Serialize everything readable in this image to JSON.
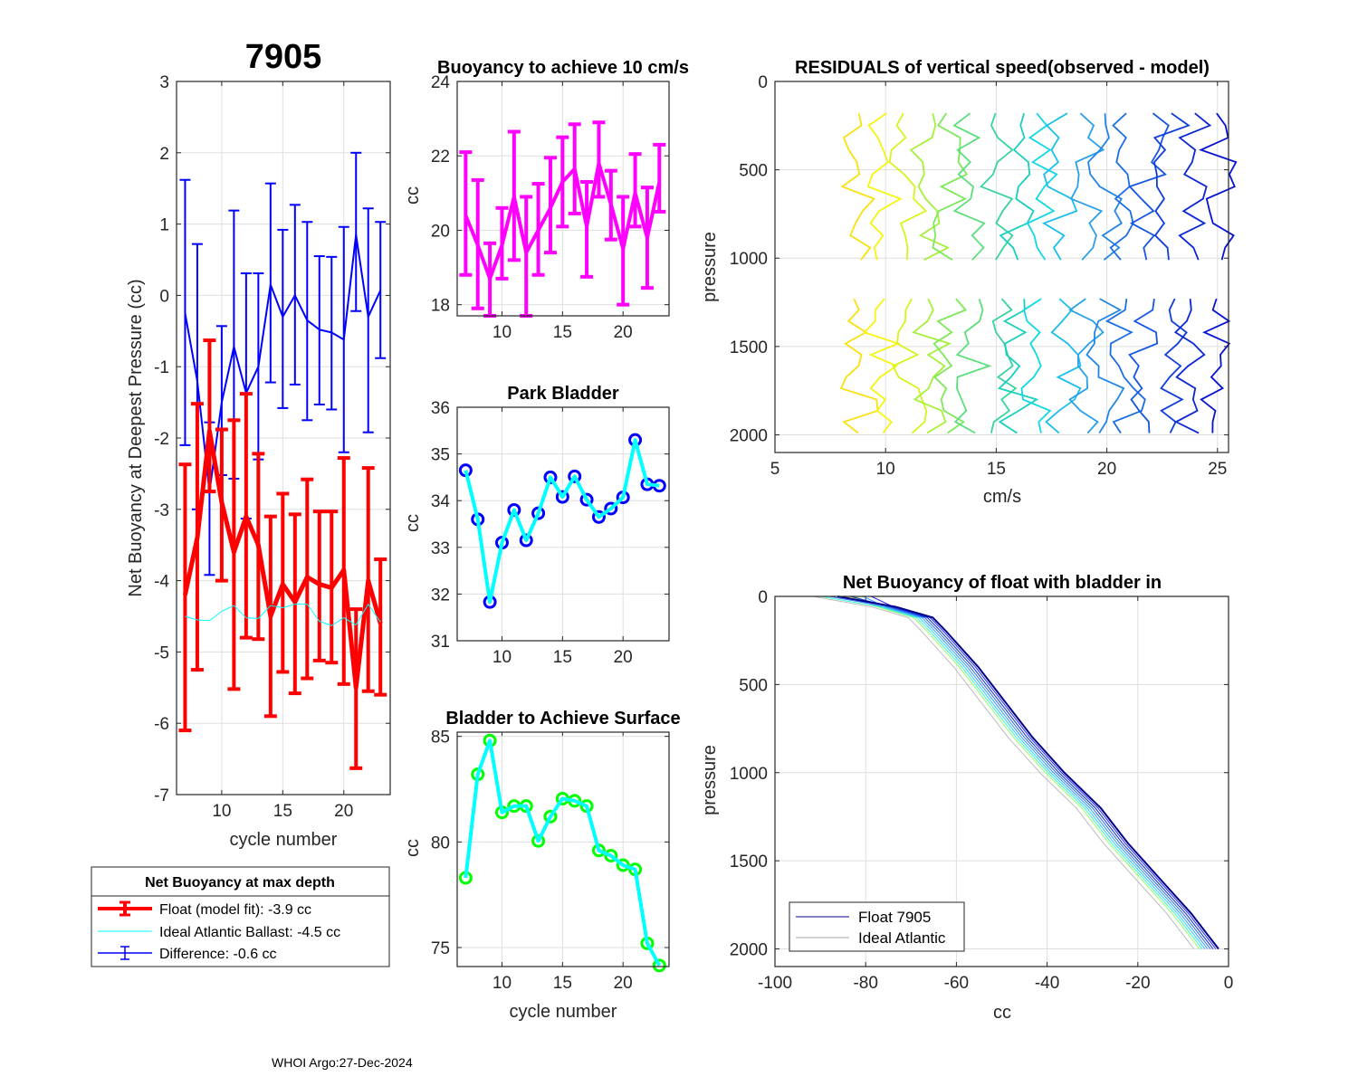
{
  "footer": "WHOI Argo:27-Dec-2024",
  "chart_data": [
    {
      "id": "net-buoyancy",
      "type": "line",
      "title": "7905",
      "xlabel": "cycle number",
      "ylabel": "Net Buoyancy at Deepest Pressure (cc)",
      "xlim": [
        6.3,
        23.8
      ],
      "ylim": [
        -7,
        3
      ],
      "xticks": [
        10,
        15,
        20
      ],
      "yticks": [
        -7,
        -6,
        -5,
        -4,
        -3,
        -2,
        -1,
        0,
        1,
        2,
        3
      ],
      "grid": true,
      "x": [
        7,
        8,
        9,
        10,
        11,
        12,
        13,
        14,
        15,
        16,
        17,
        18,
        19,
        20,
        21,
        22,
        23
      ],
      "series": [
        {
          "name": "Float (model fit)",
          "color": "#ff0000",
          "style": "errorbar-thick",
          "values": [
            -4.2,
            -3.4,
            -1.9,
            -2.9,
            -3.6,
            -3.1,
            -3.5,
            -4.5,
            -4.05,
            -4.3,
            -3.95,
            -4.05,
            -4.1,
            -3.85,
            -5.5,
            -4.0,
            -4.6
          ],
          "lower": [
            -6.1,
            -5.25,
            -2.75,
            -4.0,
            -5.52,
            -4.8,
            -4.82,
            -5.9,
            -5.28,
            -5.58,
            -5.37,
            -5.12,
            -5.15,
            -5.45,
            -6.63,
            -5.55,
            -5.6
          ],
          "upper": [
            -2.37,
            -1.52,
            -0.63,
            -1.88,
            -1.75,
            -1.38,
            -2.22,
            -3.1,
            -2.78,
            -3.07,
            -2.58,
            -3.03,
            -3.03,
            -2.28,
            -4.4,
            -2.42,
            -3.7
          ]
        },
        {
          "name": "Ideal Atlantic Ballast",
          "color": "#00ffff",
          "style": "thin-line",
          "values": [
            -4.5,
            -4.55,
            -4.56,
            -4.43,
            -4.35,
            -4.52,
            -4.53,
            -4.35,
            -4.38,
            -4.33,
            -4.33,
            -4.57,
            -4.63,
            -4.52,
            -4.62,
            -4.33,
            -4.58
          ]
        },
        {
          "name": "Difference",
          "color": "#0000ff",
          "style": "errorbar",
          "values": [
            -0.25,
            -1.2,
            -2.75,
            -1.5,
            -0.72,
            -1.37,
            -1.0,
            0.15,
            -0.3,
            0.0,
            -0.35,
            -0.48,
            -0.52,
            -0.62,
            0.85,
            -0.3,
            0.07
          ],
          "lower": [
            -2.1,
            -3.0,
            -3.92,
            -2.52,
            -2.57,
            -3.13,
            -2.3,
            -1.22,
            -1.58,
            -1.25,
            -1.75,
            -1.53,
            -1.6,
            -2.2,
            -0.22,
            -1.92,
            -0.88
          ],
          "upper": [
            1.62,
            0.72,
            -1.78,
            -0.43,
            1.19,
            0.31,
            0.31,
            1.57,
            0.92,
            1.27,
            1.03,
            0.55,
            0.54,
            0.96,
            2.0,
            1.22,
            1.03
          ]
        }
      ],
      "legend": {
        "title": "Net Buoyancy at max depth",
        "placement": "below",
        "entries": [
          {
            "label": "Float (model fit):  -3.9 cc",
            "color": "#ff0000"
          },
          {
            "label": "Ideal Atlantic Ballast:  -4.5 cc",
            "color": "#00ffff"
          },
          {
            "label": "Difference:  -0.6 cc",
            "color": "#0000ff"
          }
        ]
      }
    },
    {
      "id": "buoyancy-10cms",
      "type": "line",
      "title": "Buoyancy to achieve 10 cm/s",
      "xlabel": "",
      "ylabel": "cc",
      "xlim": [
        6.3,
        23.8
      ],
      "ylim": [
        17.7,
        24
      ],
      "xticks": [
        10,
        15,
        20
      ],
      "yticks": [
        18,
        20,
        22,
        24
      ],
      "grid": true,
      "x": [
        7,
        8,
        9,
        10,
        11,
        12,
        13,
        14,
        15,
        16,
        17,
        18,
        19,
        20,
        21,
        22,
        23
      ],
      "series": [
        {
          "name": "buoyancy",
          "color": "#ff00ff",
          "style": "errorbar-thick",
          "values": [
            20.4,
            19.6,
            18.7,
            19.6,
            20.9,
            19.4,
            20.0,
            20.6,
            21.3,
            21.65,
            20.1,
            21.8,
            20.7,
            19.5,
            21.0,
            19.8,
            21.3
          ],
          "lower": [
            18.8,
            17.9,
            17.7,
            18.7,
            19.2,
            17.7,
            18.8,
            19.4,
            20.1,
            20.45,
            18.75,
            20.9,
            19.75,
            18.0,
            20.1,
            18.45,
            20.5
          ],
          "upper": [
            22.1,
            21.35,
            19.65,
            20.6,
            22.65,
            20.9,
            21.25,
            21.95,
            22.5,
            22.85,
            21.3,
            22.9,
            21.6,
            20.9,
            22.05,
            21.15,
            22.3
          ]
        }
      ]
    },
    {
      "id": "park-bladder",
      "type": "line",
      "title": "Park Bladder",
      "xlabel": "",
      "ylabel": "cc",
      "xlim": [
        6.3,
        23.8
      ],
      "ylim": [
        31,
        36
      ],
      "xticks": [
        10,
        15,
        20
      ],
      "yticks": [
        31,
        32,
        33,
        34,
        35,
        36
      ],
      "grid": true,
      "x": [
        7,
        8,
        9,
        10,
        11,
        12,
        13,
        14,
        15,
        16,
        17,
        18,
        19,
        20,
        21,
        22,
        23
      ],
      "series": [
        {
          "name": "park bladder",
          "color": "#00ffff",
          "marker_color": "#0000ff",
          "values": [
            34.65,
            33.6,
            31.83,
            33.1,
            33.8,
            33.15,
            33.73,
            34.5,
            34.08,
            34.52,
            34.02,
            33.65,
            33.83,
            34.07,
            35.3,
            34.35,
            34.32
          ]
        }
      ]
    },
    {
      "id": "bladder-surface",
      "type": "line",
      "title": "Bladder to Achieve Surface",
      "xlabel": "cycle number",
      "ylabel": "cc",
      "xlim": [
        6.3,
        23.8
      ],
      "ylim": [
        74.1,
        85.2
      ],
      "xticks": [
        10,
        15,
        20
      ],
      "yticks": [
        75,
        80,
        85
      ],
      "grid": true,
      "x": [
        7,
        8,
        9,
        10,
        11,
        12,
        13,
        14,
        15,
        16,
        17,
        18,
        19,
        20,
        21,
        22,
        23
      ],
      "series": [
        {
          "name": "bladder to surface",
          "color": "#00ffff",
          "marker_color": "#00ff00",
          "values": [
            78.3,
            83.2,
            84.8,
            81.4,
            81.7,
            81.7,
            80.05,
            81.2,
            82.05,
            81.95,
            81.7,
            79.6,
            79.35,
            78.9,
            78.7,
            75.2,
            74.15
          ]
        }
      ]
    },
    {
      "id": "residuals",
      "type": "line",
      "title": "RESIDUALS of vertical speed(observed - model)",
      "xlabel": "cm/s",
      "ylabel": "pressure",
      "xlim": [
        5,
        25.5
      ],
      "ylim": [
        2100,
        0
      ],
      "xticks": [
        5,
        10,
        15,
        20,
        25
      ],
      "yticks": [
        0,
        500,
        1000,
        1500,
        2000
      ],
      "grid": true,
      "profile_count": 17,
      "colormap": "parula (yellow to blue)",
      "segments": [
        {
          "pressure_range": [
            180,
            1010
          ]
        },
        {
          "pressure_range": [
            1230,
            1990
          ]
        }
      ],
      "offsets_cm_s": [
        8.8,
        9.8,
        11.0,
        12.0,
        13.0,
        14.0,
        15.0,
        16.0,
        17.0,
        18.0,
        19.0,
        19.9,
        20.9,
        21.9,
        22.9,
        24.0,
        25.0
      ]
    },
    {
      "id": "net-buoyancy-profile",
      "type": "line",
      "title": "Net Buoyancy of float with bladder in",
      "xlabel": "cc",
      "ylabel": "pressure",
      "xlim": [
        -100,
        0
      ],
      "ylim": [
        2100,
        0
      ],
      "xticks": [
        -100,
        -80,
        -60,
        -40,
        -20,
        0
      ],
      "yticks": [
        0,
        500,
        1000,
        1500,
        2000
      ],
      "grid": true,
      "profile": {
        "pressure": [
          0,
          60,
          120,
          200,
          400,
          600,
          800,
          1000,
          1200,
          1400,
          1600,
          1800,
          2000
        ],
        "cc": [
          -84,
          -75,
          -67,
          -64,
          -57,
          -51,
          -45,
          -38,
          -30,
          -24,
          -17,
          -10,
          -4
        ]
      },
      "legend": {
        "placement": "bottom-left",
        "entries": [
          {
            "label": "Float 7905",
            "color": "#00008b"
          },
          {
            "label": "Ideal Atlantic",
            "color": "#aaaaaa"
          }
        ]
      }
    }
  ]
}
